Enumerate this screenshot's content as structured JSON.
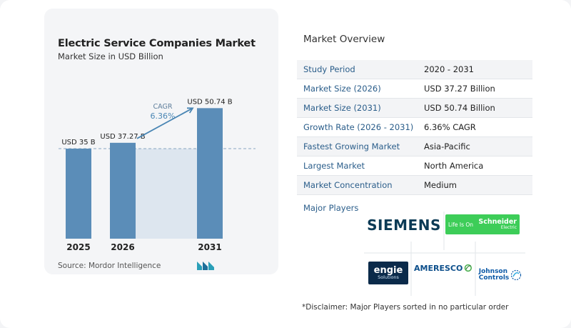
{
  "chart": {
    "title": "Electric Service Companies Market",
    "subtitle": "Market Size in USD Billion",
    "source": "Source:  Mordor Intelligence",
    "cagr_label": "CAGR",
    "cagr_value": "6.36%",
    "colors": {
      "bar": "#5b8db8",
      "projection_bg": "#dde6ef",
      "accent": "#4a86b4"
    }
  },
  "chart_data": {
    "type": "bar",
    "categories": [
      "2025",
      "2026",
      "2031"
    ],
    "values": [
      35,
      37.27,
      50.74
    ],
    "data_labels": [
      "USD 35 B",
      "USD 37.27 B",
      "USD 50.74 B"
    ],
    "title": "Electric Service Companies Market",
    "subtitle": "Market Size in USD Billion",
    "annotations": [
      "CAGR",
      "6.36%"
    ],
    "grid": false,
    "baseline_reference": 35
  },
  "overview": {
    "title": "Market Overview",
    "rows": [
      {
        "label": "Study Period",
        "value": "2020 - 2031"
      },
      {
        "label": "Market Size (2026)",
        "value": "USD 37.27 Billion"
      },
      {
        "label": "Market Size (2031)",
        "value": "USD 50.74 Billion"
      },
      {
        "label": "Growth Rate (2026 - 2031)",
        "value": "6.36% CAGR"
      },
      {
        "label": "Fastest Growing Market",
        "value": "Asia-Pacific"
      },
      {
        "label": "Largest Market",
        "value": "North America"
      },
      {
        "label": "Market Concentration",
        "value": "Medium"
      }
    ],
    "players_title": "Major Players",
    "players": {
      "siemens": "SIEMENS",
      "schneider_tagline": "Life Is On",
      "schneider_name": "Schneider",
      "schneider_sub": "Electric",
      "engie_name": "engie",
      "engie_sub": "Solutions",
      "ameresco": "AMERESCO",
      "johnson_1": "Johnson",
      "johnson_2": "Controls"
    },
    "disclaimer": "*Disclaimer: Major Players sorted in no particular order"
  }
}
